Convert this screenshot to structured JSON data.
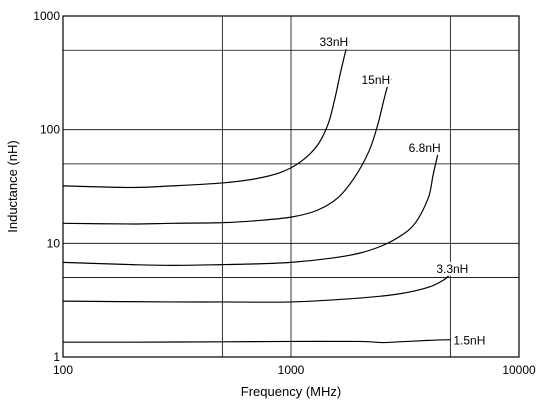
{
  "chart_data": {
    "type": "line",
    "title": "",
    "xlabel": "Frequency (MHz)",
    "ylabel": "Inductance (nH)",
    "x_scale": "log",
    "y_scale": "log",
    "xlim": [
      100,
      10000
    ],
    "ylim": [
      1,
      1000
    ],
    "x_ticks": [
      {
        "value": 100,
        "label": "100"
      },
      {
        "value": 1000,
        "label": "1000"
      },
      {
        "value": 10000,
        "label": "10000"
      }
    ],
    "y_ticks": [
      {
        "value": 1,
        "label": "1"
      },
      {
        "value": 10,
        "label": "10"
      },
      {
        "value": 100,
        "label": "100"
      },
      {
        "value": 1000,
        "label": "1000"
      }
    ],
    "x_gridlines": [
      500,
      1000,
      5000
    ],
    "y_gridlines": [
      5,
      10,
      50,
      100,
      500
    ],
    "grid": true,
    "series": [
      {
        "name": "33nH",
        "x": [
          100,
          200,
          300,
          500,
          700,
          900,
          1100,
          1300,
          1450,
          1550,
          1650,
          1750,
          1800
        ],
        "y": [
          32,
          31,
          32,
          34,
          37,
          42,
          52,
          72,
          110,
          180,
          320,
          520,
          600
        ]
      },
      {
        "name": "15nH",
        "x": [
          100,
          200,
          300,
          500,
          700,
          1000,
          1300,
          1600,
          1900,
          2200,
          2400,
          2550,
          2650,
          2750
        ],
        "y": [
          15,
          14.8,
          15,
          15.2,
          15.8,
          17,
          19.5,
          25,
          38,
          65,
          110,
          180,
          240,
          280
        ]
      },
      {
        "name": "6.8nH",
        "x": [
          100,
          200,
          300,
          500,
          700,
          1000,
          1500,
          2000,
          2500,
          3000,
          3500,
          4000,
          4200,
          4400
        ],
        "y": [
          6.8,
          6.5,
          6.4,
          6.5,
          6.6,
          6.8,
          7.4,
          8.2,
          9.5,
          11.5,
          15,
          25,
          40,
          60
        ]
      },
      {
        "name": "3.3nH",
        "x": [
          100,
          300,
          500,
          1000,
          2000,
          3000,
          4000,
          4700,
          5000
        ],
        "y": [
          3.1,
          3.05,
          3.05,
          3.05,
          3.3,
          3.6,
          4.1,
          4.8,
          5.4
        ]
      },
      {
        "name": "1.5nH",
        "x": [
          100,
          200,
          500,
          1000,
          2000,
          2500,
          3000,
          4000,
          5000
        ],
        "y": [
          1.35,
          1.35,
          1.36,
          1.37,
          1.37,
          1.34,
          1.36,
          1.4,
          1.42
        ]
      }
    ]
  }
}
